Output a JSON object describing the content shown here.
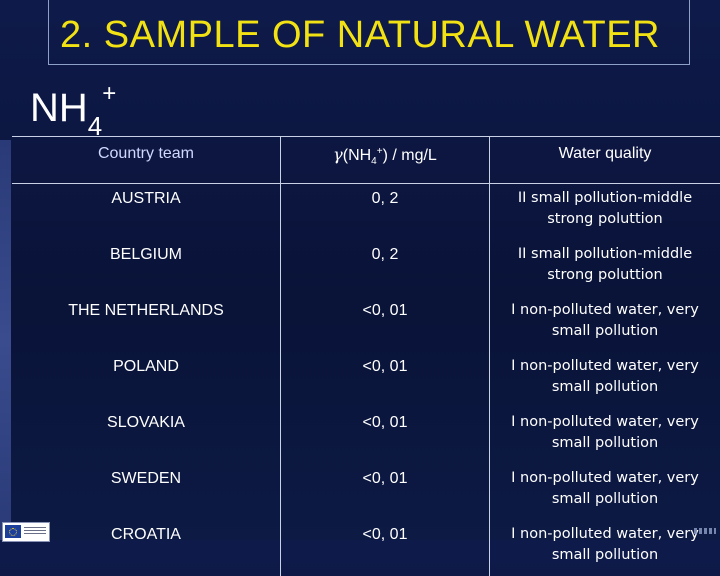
{
  "slide": {
    "title": "2. SAMPLE OF NATURAL WATER",
    "formula": {
      "base": "NH",
      "subscript": "4",
      "superscript": "+"
    }
  },
  "table": {
    "headers": {
      "country": "Country team",
      "gamma_symbol": "γ",
      "conc_open": "(NH",
      "conc_sub": "4",
      "conc_sup": "+",
      "conc_close": ") / mg/L",
      "quality": "Water quality"
    },
    "rows": [
      {
        "country": "AUSTRIA",
        "value": "0, 2",
        "quality": "II small pollution-middle strong poluttion"
      },
      {
        "country": "BELGIUM",
        "value": "0, 2",
        "quality": "II small pollution-middle strong poluttion"
      },
      {
        "country": "THE NETHERLANDS",
        "value": "<0, 01",
        "quality": "I  non-polluted water, very small pollution"
      },
      {
        "country": "POLAND",
        "value": "<0, 01",
        "quality": "I  non-polluted water, very small pollution"
      },
      {
        "country": "SLOVAKIA",
        "value": "<0, 01",
        "quality": "I  non-polluted water, very small pollution"
      },
      {
        "country": "SWEDEN",
        "value": "<0, 01",
        "quality": "I  non-polluted water, very small pollution"
      },
      {
        "country": "CROATIA",
        "value": "<0, 01",
        "quality": "I  non-polluted water, very small pollution"
      }
    ]
  },
  "colors": {
    "title": "#f2e214",
    "background": "#0e1a4a",
    "text": "#ffffff"
  },
  "icons": {
    "logo": "eu-flag-icon"
  }
}
